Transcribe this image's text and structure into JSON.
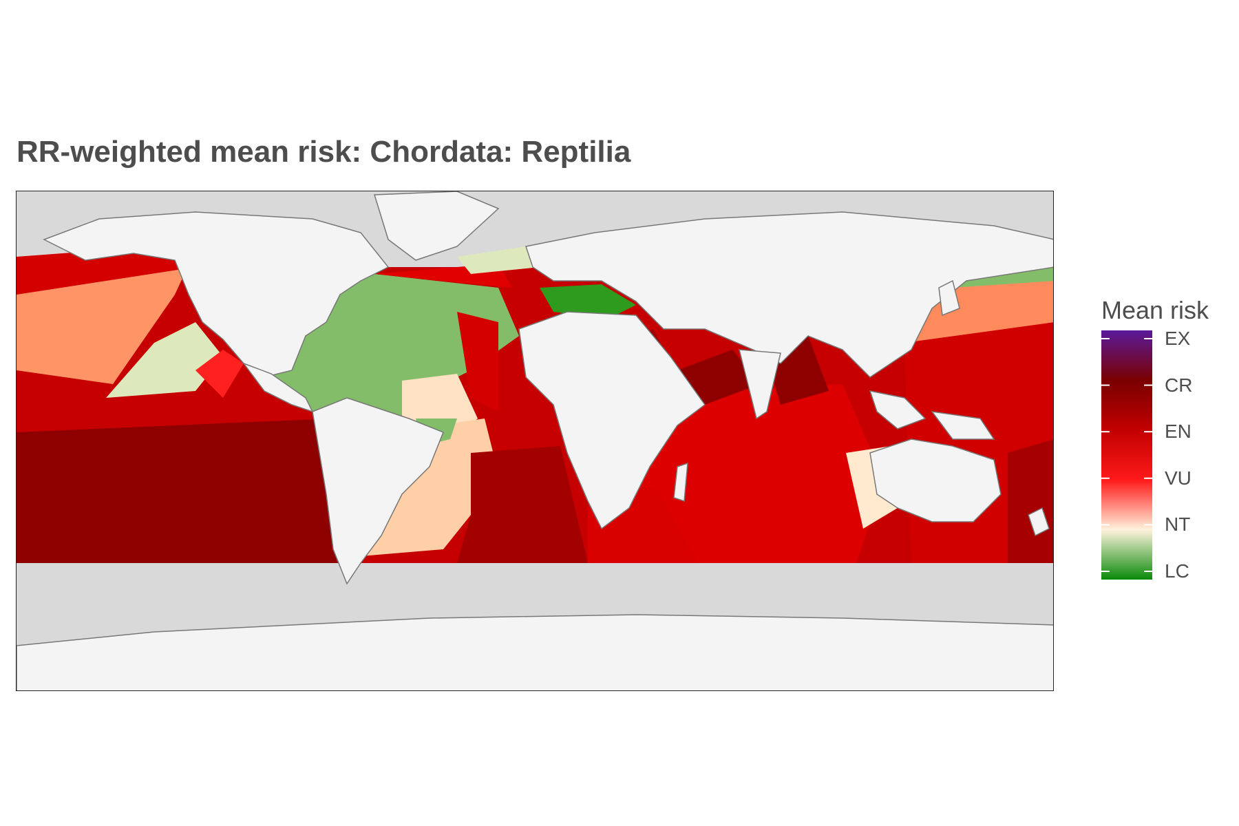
{
  "title": "RR-weighted mean risk: Chordata: Reptilia",
  "legend": {
    "title": "Mean risk",
    "categories": [
      "EX",
      "CR",
      "EN",
      "VU",
      "NT",
      "LC"
    ],
    "colors": {
      "EX": "#5a1a9a",
      "CR": "#7a0000",
      "EN": "#c20000",
      "VU": "#ff1a1a",
      "NT": "#fff2dc",
      "LC": "#0a8a0a"
    }
  },
  "map": {
    "land_color": "#f4f4f4",
    "ocean_nodata_color": "#d9d9d9",
    "coast_color": "#777777"
  }
}
